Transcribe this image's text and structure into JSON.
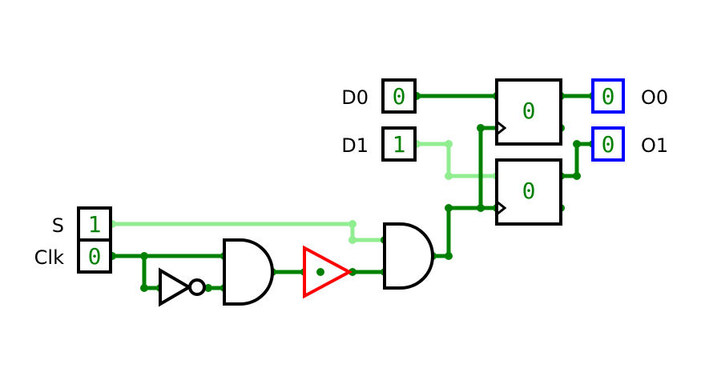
{
  "inputs": {
    "d0": {
      "label": "D0",
      "value": "0"
    },
    "d1": {
      "label": "D1",
      "value": "1"
    },
    "s": {
      "label": "S",
      "value": "1"
    },
    "clk": {
      "label": "Clk",
      "value": "0"
    }
  },
  "outputs": {
    "o0": {
      "label": "O0",
      "value": "0"
    },
    "o1": {
      "label": "O1",
      "value": "0"
    }
  },
  "flipflops": {
    "ff0": {
      "value": "0"
    },
    "ff1": {
      "value": "0"
    }
  },
  "colors": {
    "wire_low": "#008000",
    "wire_high": "#90ee90",
    "output_border": "#0000ff",
    "buffer_gate": "#ff0000",
    "text_value": "#008000"
  }
}
